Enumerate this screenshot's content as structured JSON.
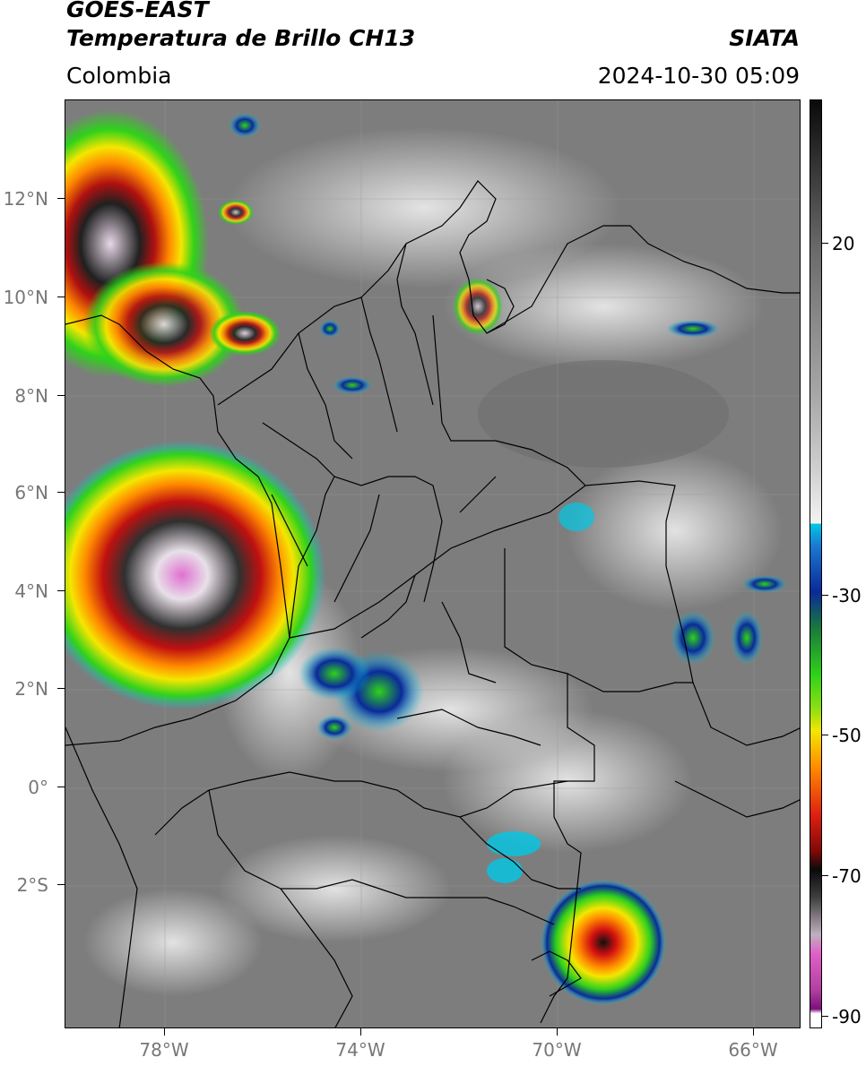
{
  "header": {
    "satellite": "GOES-EAST",
    "product": "Temperatura de Brillo CH13",
    "brand": "SIATA",
    "region": "Colombia",
    "timestamp": "2024-10-30 05:09"
  },
  "map": {
    "lat_labels": [
      "12°N",
      "10°N",
      "8°N",
      "6°N",
      "4°N",
      "2°N",
      "0°",
      "2°S"
    ],
    "lon_labels": [
      "78°W",
      "74°W",
      "70°W",
      "66°W"
    ]
  },
  "colorbar": {
    "labels": [
      "20",
      "-30",
      "-50",
      "-70",
      "-90"
    ],
    "colors": {
      "warm_gray": "#8a8a8a",
      "cyan": "#00c8e6",
      "blue": "#0a2a9a",
      "green": "#2fd21a",
      "yellow": "#f5e600",
      "orange": "#ff8a00",
      "red": "#d21010",
      "black": "#0a0a0a",
      "pink": "#e060c8",
      "purple": "#8a1a8a"
    }
  }
}
